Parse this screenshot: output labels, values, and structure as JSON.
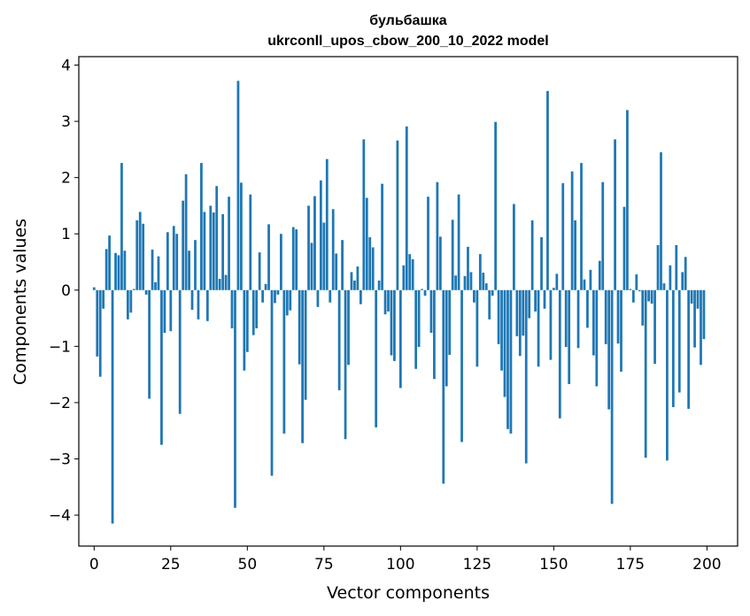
{
  "chart_data": {
    "type": "bar",
    "title": "бульбашка",
    "subtitle": "ukrconll_upos_cbow_200_10_2022 model",
    "xlabel": "Vector components",
    "ylabel": "Components values",
    "xlim": [
      -5,
      210
    ],
    "ylim": [
      -4.55,
      4.15
    ],
    "x_ticks": [
      0,
      25,
      50,
      75,
      100,
      125,
      150,
      175,
      200
    ],
    "y_ticks": [
      -4,
      -3,
      -2,
      -1,
      0,
      1,
      2,
      3,
      4
    ],
    "x_tick_labels": [
      "0",
      "25",
      "50",
      "75",
      "100",
      "125",
      "150",
      "175",
      "200"
    ],
    "y_tick_labels": [
      "−4",
      "−3",
      "−2",
      "−1",
      "0",
      "1",
      "2",
      "3",
      "4"
    ],
    "grid": false,
    "bar_color": "#1f77b4",
    "values": [
      0.05,
      -1.18,
      -1.54,
      -0.33,
      0.73,
      0.97,
      -4.15,
      0.66,
      0.62,
      2.26,
      0.7,
      -0.52,
      -0.4,
      0.02,
      1.24,
      1.39,
      1.18,
      -0.08,
      -1.93,
      0.72,
      0.14,
      0.6,
      -2.75,
      -0.76,
      1.03,
      -0.73,
      1.14,
      1.0,
      -2.2,
      1.59,
      2.06,
      0.7,
      -0.35,
      0.89,
      -0.52,
      2.26,
      1.39,
      -0.55,
      1.5,
      1.38,
      1.85,
      0.2,
      1.35,
      0.27,
      1.66,
      -0.68,
      -3.87,
      3.72,
      1.91,
      -1.43,
      -1.1,
      1.7,
      -0.8,
      -0.68,
      0.67,
      -0.22,
      0.11,
      1.17,
      -3.3,
      -0.23,
      -0.08,
      1.0,
      -2.55,
      -0.45,
      -0.36,
      1.12,
      1.08,
      -1.32,
      -2.72,
      -1.95,
      1.5,
      0.84,
      1.67,
      -0.3,
      1.95,
      1.2,
      2.33,
      -0.22,
      1.44,
      0.65,
      -1.78,
      0.89,
      -2.65,
      -1.33,
      0.32,
      0.17,
      0.42,
      -0.25,
      2.68,
      1.64,
      0.94,
      0.76,
      -2.44,
      0.17,
      1.89,
      -0.43,
      -0.38,
      -1.16,
      -1.26,
      2.66,
      -1.74,
      0.44,
      2.91,
      0.64,
      0.55,
      -1.4,
      -1.01,
      0.02,
      -0.1,
      1.66,
      -0.76,
      -1.58,
      1.92,
      0.95,
      -3.44,
      -1.71,
      -1.15,
      1.25,
      0.26,
      1.7,
      -2.7,
      0.25,
      0.77,
      0.32,
      -0.22,
      -1.36,
      0.64,
      0.31,
      0.12,
      -0.52,
      -0.1,
      2.99,
      -0.96,
      -1.43,
      -1.9,
      -2.47,
      -2.55,
      1.53,
      -0.82,
      -1.17,
      -0.81,
      -3.08,
      -0.5,
      1.24,
      -0.38,
      -1.36,
      0.94,
      -0.33,
      3.54,
      -1.24,
      0.04,
      0.29,
      -2.28,
      1.9,
      -1.01,
      -1.67,
      2.11,
      1.24,
      -1.03,
      2.26,
      0.19,
      -0.67,
      0.36,
      -1.16,
      -1.71,
      0.52,
      1.92,
      -0.96,
      -2.12,
      -3.8,
      2.68,
      -0.95,
      -1.45,
      1.48,
      3.2,
      0.02,
      -0.22,
      0.28,
      -0.02,
      -0.63,
      -2.98,
      -0.2,
      -0.24,
      -1.31,
      0.8,
      2.45,
      0.12,
      -3.03,
      0.44,
      -2.08,
      0.8,
      -1.82,
      0.32,
      0.59,
      -2.11,
      -0.24,
      -1.02,
      -0.33,
      -1.33,
      -0.87
    ]
  }
}
